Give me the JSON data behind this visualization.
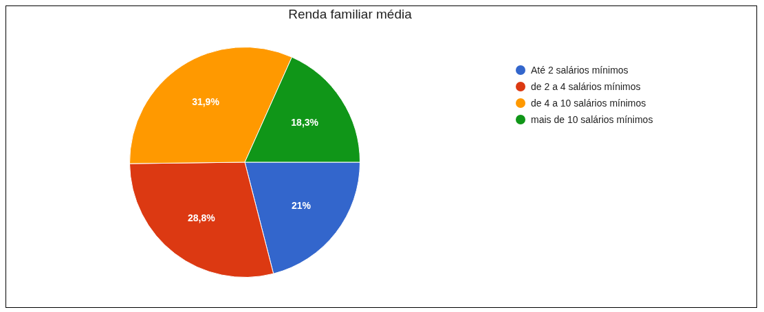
{
  "chart_data": {
    "type": "pie",
    "title": "Renda familiar média",
    "categories": [
      "Até 2 salários mínimos",
      "de 2 a 4 salários mínimos",
      "de 4 a 10 salários mínimos",
      "mais de 10 salários mínimos"
    ],
    "values": [
      21,
      28.8,
      31.9,
      18.3
    ],
    "colors": [
      "#3366cc",
      "#dc3912",
      "#ff9900",
      "#109618"
    ],
    "value_labels": [
      "21%",
      "28,8%",
      "31,9%",
      "18,3%"
    ],
    "legend": "top right"
  }
}
